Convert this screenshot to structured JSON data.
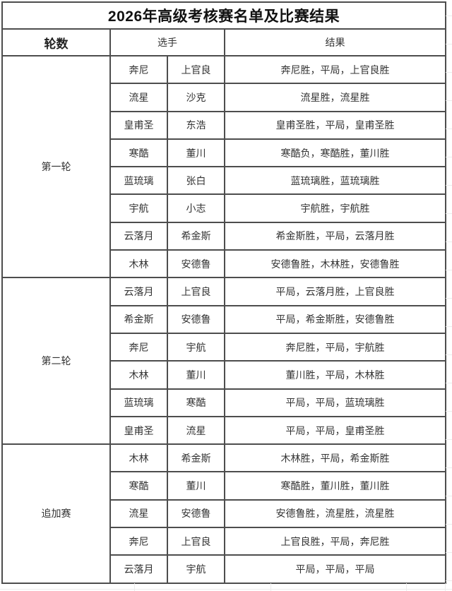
{
  "title": "2026年高级考核赛名单及比赛结果",
  "headers": {
    "round": "轮数",
    "players": "选手",
    "result": "结果"
  },
  "sections": [
    {
      "label": "第一轮",
      "rows": [
        {
          "player1": "奔尼",
          "player2": "上官良",
          "result": "奔尼胜，平局，上官良胜"
        },
        {
          "player1": "流星",
          "player2": "沙克",
          "result": "流星胜，流星胜"
        },
        {
          "player1": "皇甫圣",
          "player2": "东浩",
          "result": "皇甫圣胜，平局，皇甫圣胜"
        },
        {
          "player1": "寒酷",
          "player2": "董川",
          "result": "寒酷负，寒酷胜，董川胜"
        },
        {
          "player1": "蓝琉璃",
          "player2": "张白",
          "result": "蓝琉璃胜，蓝琉璃胜"
        },
        {
          "player1": "宇航",
          "player2": "小志",
          "result": "宇航胜，宇航胜"
        },
        {
          "player1": "云落月",
          "player2": "希金斯",
          "result": "希金斯胜，平局，云落月胜"
        },
        {
          "player1": "木林",
          "player2": "安德鲁",
          "result": "安德鲁胜，木林胜，安德鲁胜"
        }
      ]
    },
    {
      "label": "第二轮",
      "rows": [
        {
          "player1": "云落月",
          "player2": "上官良",
          "result": "平局，云落月胜，上官良胜"
        },
        {
          "player1": "希金斯",
          "player2": "安德鲁",
          "result": "平局，希金斯胜，安德鲁胜"
        },
        {
          "player1": "奔尼",
          "player2": "宇航",
          "result": "奔尼胜，平局，宇航胜"
        },
        {
          "player1": "木林",
          "player2": "董川",
          "result": "董川胜，平局，木林胜"
        },
        {
          "player1": "蓝琉璃",
          "player2": "寒酷",
          "result": "平局，平局，蓝琉璃胜"
        },
        {
          "player1": "皇甫圣",
          "player2": "流星",
          "result": "平局，平局，皇甫圣胜"
        }
      ]
    },
    {
      "label": "追加赛",
      "rows": [
        {
          "player1": "木林",
          "player2": "希金斯",
          "result": "木林胜，平局，希金斯胜"
        },
        {
          "player1": "寒酷",
          "player2": "董川",
          "result": "寒酷胜，董川胜，董川胜"
        },
        {
          "player1": "流星",
          "player2": "安德鲁",
          "result": "安德鲁胜，流星胜，流星胜"
        },
        {
          "player1": "奔尼",
          "player2": "上官良",
          "result": "上官良胜，平局，奔尼胜"
        },
        {
          "player1": "云落月",
          "player2": "宇航",
          "result": "平局，平局，平局"
        }
      ]
    }
  ],
  "colors": {
    "table_border": "#4d4d4d",
    "faint_grid": "#ececec",
    "text": "#333333",
    "title_text": "#111111"
  }
}
